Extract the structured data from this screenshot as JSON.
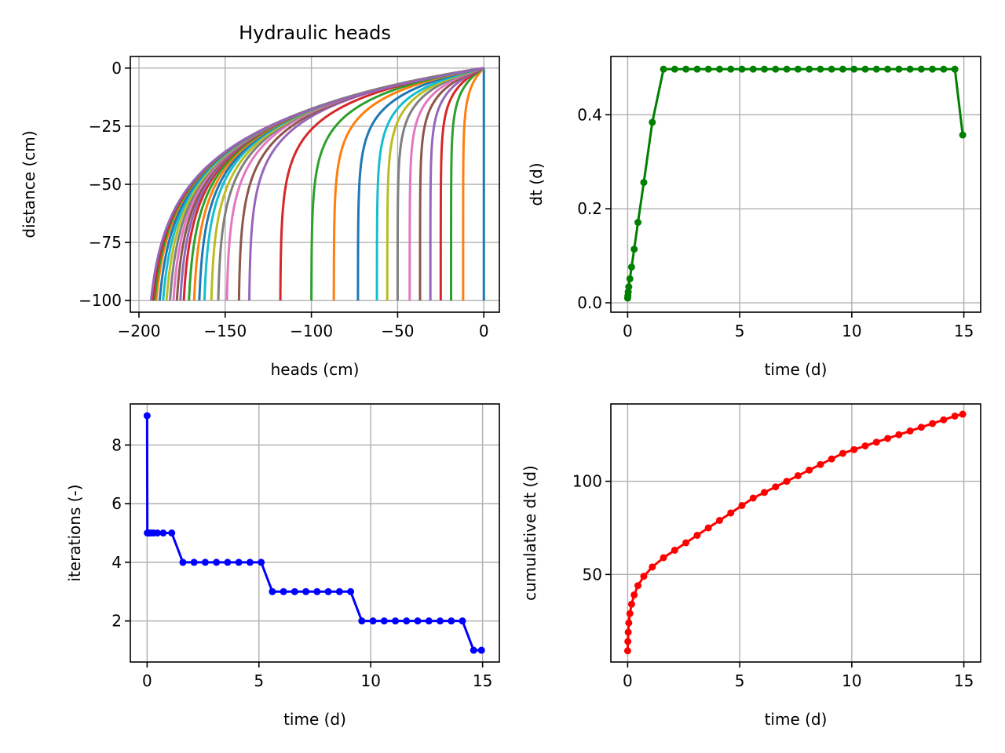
{
  "chart_data": [
    {
      "type": "line",
      "title": "Hydraulic heads",
      "xlabel": "heads (cm)",
      "ylabel": "distance (cm)",
      "xlim": [
        -205,
        9
      ],
      "ylim": [
        -105,
        5
      ],
      "xticks": [
        -200,
        -150,
        -100,
        -50,
        0
      ],
      "yticks": [
        0,
        -25,
        -50,
        -75,
        -100
      ],
      "grid": true,
      "profile_surface_heads": [
        0,
        -12,
        -19,
        -25,
        -31,
        -37,
        -43,
        -50,
        -56,
        -62,
        -73,
        -87,
        -100,
        -118,
        -136,
        -142,
        -149,
        -154,
        -158,
        -162,
        -165,
        -168,
        -171,
        -174,
        -176,
        -178,
        -180,
        -182,
        -184,
        -186,
        -188,
        -190,
        -191,
        -192,
        -193
      ]
    },
    {
      "type": "line",
      "xlabel": "time (d)",
      "ylabel": "dt (d)",
      "xlim": [
        -0.75,
        15.75
      ],
      "ylim": [
        -0.02,
        0.524
      ],
      "xticks": [
        0,
        5,
        10,
        15
      ],
      "yticks": [
        0.0,
        0.2,
        0.4
      ],
      "grid": true,
      "color": "#008000",
      "series": [
        {
          "x": [
            0.0,
            0.01,
            0.025,
            0.05,
            0.1,
            0.175,
            0.29,
            0.46,
            0.72,
            1.1,
            1.6,
            2.1,
            2.6,
            3.1,
            3.6,
            4.1,
            4.6,
            5.1,
            5.6,
            6.1,
            6.6,
            7.1,
            7.6,
            8.1,
            8.6,
            9.1,
            9.6,
            10.1,
            10.6,
            11.1,
            11.6,
            12.1,
            12.6,
            13.1,
            13.6,
            14.1,
            14.6,
            14.95
          ],
          "y": [
            0.01,
            0.015,
            0.023,
            0.034,
            0.051,
            0.076,
            0.114,
            0.171,
            0.256,
            0.384,
            0.497,
            0.497,
            0.497,
            0.497,
            0.497,
            0.497,
            0.497,
            0.497,
            0.497,
            0.497,
            0.497,
            0.497,
            0.497,
            0.497,
            0.497,
            0.497,
            0.497,
            0.497,
            0.497,
            0.497,
            0.497,
            0.497,
            0.497,
            0.497,
            0.497,
            0.497,
            0.497,
            0.357
          ]
        }
      ]
    },
    {
      "type": "line",
      "xlabel": "time (d)",
      "ylabel": "iterations (-)",
      "xlim": [
        -0.75,
        15.75
      ],
      "ylim": [
        0.6,
        9.4
      ],
      "xticks": [
        0,
        5,
        10,
        15
      ],
      "yticks": [
        2,
        4,
        6,
        8
      ],
      "grid": true,
      "color": "#0000ff",
      "series": [
        {
          "x": [
            0.0,
            0.01,
            0.025,
            0.05,
            0.1,
            0.175,
            0.29,
            0.46,
            0.72,
            1.1,
            1.6,
            2.1,
            2.6,
            3.1,
            3.6,
            4.1,
            4.6,
            5.1,
            5.6,
            6.1,
            6.6,
            7.1,
            7.6,
            8.1,
            8.6,
            9.1,
            9.6,
            10.1,
            10.6,
            11.1,
            11.6,
            12.1,
            12.6,
            13.1,
            13.6,
            14.1,
            14.6,
            14.95
          ],
          "y": [
            9,
            5,
            5,
            5,
            5,
            5,
            5,
            5,
            5,
            5,
            4,
            4,
            4,
            4,
            4,
            4,
            4,
            4,
            3,
            3,
            3,
            3,
            3,
            3,
            3,
            3,
            2,
            2,
            2,
            2,
            2,
            2,
            2,
            2,
            2,
            2,
            1,
            1
          ]
        }
      ]
    },
    {
      "type": "line",
      "xlabel": "time (d)",
      "ylabel": "cumulative dt (d)",
      "xlim": [
        -0.75,
        15.75
      ],
      "ylim": [
        3,
        141.5
      ],
      "xticks": [
        0,
        5,
        10,
        15
      ],
      "yticks": [
        50,
        100
      ],
      "grid": true,
      "color": "#ff0000",
      "series": [
        {
          "x": [
            0.0,
            0.01,
            0.025,
            0.05,
            0.1,
            0.175,
            0.29,
            0.46,
            0.72,
            1.1,
            1.6,
            2.1,
            2.6,
            3.1,
            3.6,
            4.1,
            4.6,
            5.1,
            5.6,
            6.1,
            6.6,
            7.1,
            7.6,
            8.1,
            8.6,
            9.1,
            9.6,
            10.1,
            10.6,
            11.1,
            11.6,
            12.1,
            12.6,
            13.1,
            13.6,
            14.1,
            14.6,
            14.95
          ],
          "y": [
            9,
            14,
            19,
            24,
            29,
            34,
            39,
            44,
            49,
            54,
            59,
            63,
            67,
            71,
            75,
            79,
            83,
            87,
            91,
            94,
            97,
            100,
            103,
            106,
            109,
            112,
            115,
            117,
            119,
            121,
            123,
            125,
            127,
            129,
            131,
            133,
            135,
            136
          ]
        }
      ]
    }
  ]
}
